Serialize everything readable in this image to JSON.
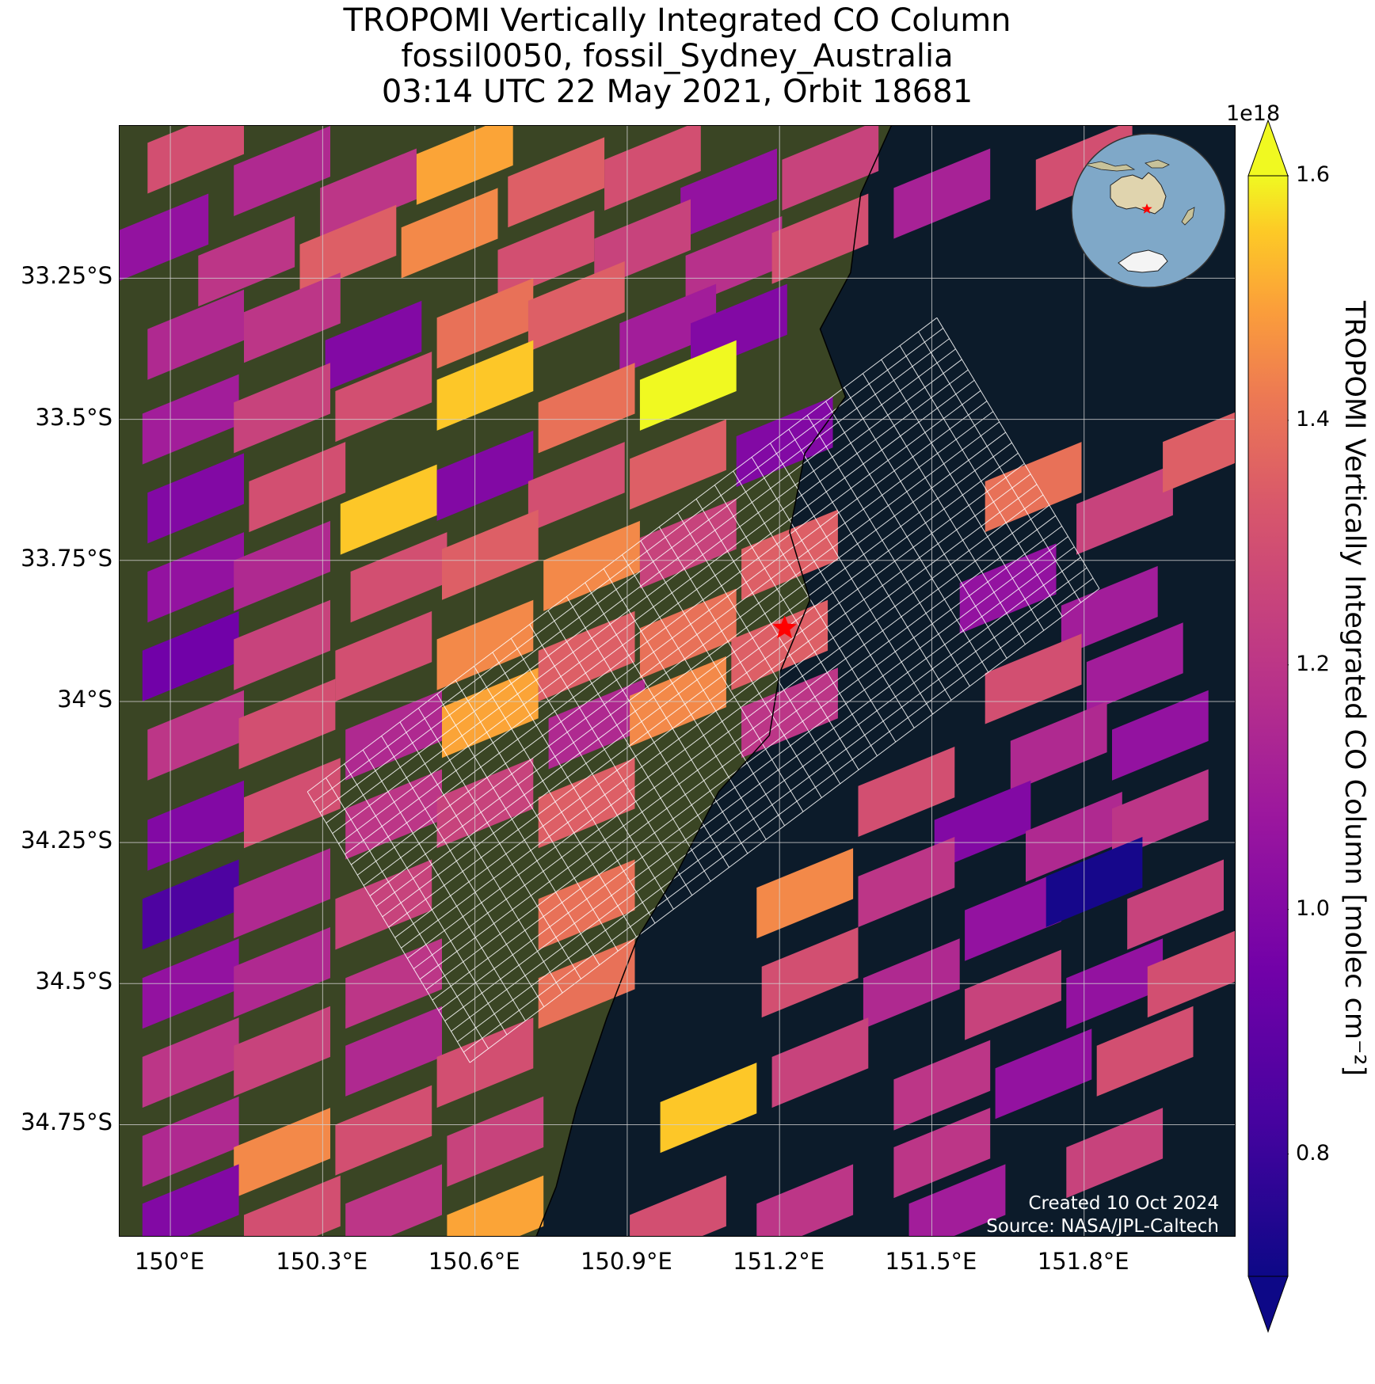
{
  "title": {
    "line1": "TROPOMI Vertically Integrated CO Column",
    "line2": "fossil0050, fossil_Sydney_Australia",
    "line3": "03:14 UTC 22 May 2021, Orbit 18681"
  },
  "map": {
    "extent": {
      "lon": [
        149.9,
        152.1
      ],
      "lat": [
        -34.95,
        -32.98
      ]
    },
    "lat_ticks": [
      {
        "value": -33.25,
        "label": "33.25°S"
      },
      {
        "value": -33.5,
        "label": "33.5°S"
      },
      {
        "value": -33.75,
        "label": "33.75°S"
      },
      {
        "value": -34.0,
        "label": "34°S"
      },
      {
        "value": -34.25,
        "label": "34.25°S"
      },
      {
        "value": -34.5,
        "label": "34.5°S"
      },
      {
        "value": -34.75,
        "label": "34.75°S"
      }
    ],
    "lon_ticks": [
      {
        "value": 150.0,
        "label": "150°E"
      },
      {
        "value": 150.3,
        "label": "150.3°E"
      },
      {
        "value": 150.6,
        "label": "150.6°E"
      },
      {
        "value": 150.9,
        "label": "150.9°E"
      },
      {
        "value": 151.2,
        "label": "151.2°E"
      },
      {
        "value": 151.5,
        "label": "151.5°E"
      },
      {
        "value": 151.8,
        "label": "151.8°E"
      }
    ],
    "target": {
      "name": "fossil_Sydney_Australia",
      "lon": 151.21,
      "lat": -33.87
    },
    "colors": {
      "ocean": "#0c1b2a",
      "land": "#3a4524",
      "target": "#ff0000",
      "grid": "#d0d0d0",
      "sam_grid": "#ffffff"
    }
  },
  "chart_data": {
    "type": "heatmap",
    "title": "TROPOMI Vertically Integrated CO Column",
    "colorbar_label": "TROPOMI Vertically Integrated CO Column [molec cm⁻²]",
    "colorbar_exponent": "1e18",
    "vmin": 0.7,
    "vmax": 1.6,
    "colorbar_ticks": [
      "0.8",
      "1.0",
      "1.2",
      "1.4",
      "1.6"
    ],
    "colormap": "plasma",
    "pixel_size_deg": {
      "lon": 0.19,
      "lat": 0.09
    },
    "pixels": [
      {
        "lon": 150.05,
        "lat": -33.02,
        "v": 1.3
      },
      {
        "lon": 150.22,
        "lat": -33.06,
        "v": 1.15
      },
      {
        "lon": 150.39,
        "lat": -33.1,
        "v": 1.2
      },
      {
        "lon": 150.58,
        "lat": -33.04,
        "v": 1.5
      },
      {
        "lon": 150.76,
        "lat": -33.08,
        "v": 1.35
      },
      {
        "lon": 150.95,
        "lat": -33.05,
        "v": 1.3
      },
      {
        "lon": 151.1,
        "lat": -33.1,
        "v": 1.05
      },
      {
        "lon": 151.3,
        "lat": -33.05,
        "v": 1.25
      },
      {
        "lon": 151.52,
        "lat": -33.1,
        "v": 1.12
      },
      {
        "lon": 151.8,
        "lat": -33.05,
        "v": 1.3
      },
      {
        "lon": 149.98,
        "lat": -33.18,
        "v": 1.05
      },
      {
        "lon": 150.15,
        "lat": -33.22,
        "v": 1.2
      },
      {
        "lon": 150.35,
        "lat": -33.2,
        "v": 1.35
      },
      {
        "lon": 150.55,
        "lat": -33.17,
        "v": 1.45
      },
      {
        "lon": 150.74,
        "lat": -33.21,
        "v": 1.3
      },
      {
        "lon": 150.93,
        "lat": -33.19,
        "v": 1.25
      },
      {
        "lon": 151.11,
        "lat": -33.22,
        "v": 1.18
      },
      {
        "lon": 151.28,
        "lat": -33.18,
        "v": 1.3
      },
      {
        "lon": 150.05,
        "lat": -33.35,
        "v": 1.15
      },
      {
        "lon": 150.24,
        "lat": -33.32,
        "v": 1.2
      },
      {
        "lon": 150.4,
        "lat": -33.37,
        "v": 1.0
      },
      {
        "lon": 150.62,
        "lat": -33.33,
        "v": 1.4
      },
      {
        "lon": 150.8,
        "lat": -33.3,
        "v": 1.35
      },
      {
        "lon": 150.98,
        "lat": -33.34,
        "v": 1.1
      },
      {
        "lon": 151.12,
        "lat": -33.34,
        "v": 1.0
      },
      {
        "lon": 150.04,
        "lat": -33.5,
        "v": 1.1
      },
      {
        "lon": 150.22,
        "lat": -33.48,
        "v": 1.25
      },
      {
        "lon": 150.42,
        "lat": -33.46,
        "v": 1.3
      },
      {
        "lon": 150.62,
        "lat": -33.44,
        "v": 1.55
      },
      {
        "lon": 150.82,
        "lat": -33.48,
        "v": 1.4
      },
      {
        "lon": 151.02,
        "lat": -33.44,
        "v": 1.6
      },
      {
        "lon": 150.05,
        "lat": -33.64,
        "v": 1.0
      },
      {
        "lon": 150.25,
        "lat": -33.62,
        "v": 1.3
      },
      {
        "lon": 150.43,
        "lat": -33.66,
        "v": 1.55
      },
      {
        "lon": 150.62,
        "lat": -33.6,
        "v": 1.0
      },
      {
        "lon": 150.8,
        "lat": -33.62,
        "v": 1.3
      },
      {
        "lon": 151.0,
        "lat": -33.58,
        "v": 1.35
      },
      {
        "lon": 151.21,
        "lat": -33.54,
        "v": 1.0
      },
      {
        "lon": 150.05,
        "lat": -33.78,
        "v": 1.05
      },
      {
        "lon": 150.22,
        "lat": -33.76,
        "v": 1.15
      },
      {
        "lon": 150.45,
        "lat": -33.78,
        "v": 1.3
      },
      {
        "lon": 150.63,
        "lat": -33.74,
        "v": 1.35
      },
      {
        "lon": 150.83,
        "lat": -33.76,
        "v": 1.45
      },
      {
        "lon": 151.02,
        "lat": -33.72,
        "v": 1.25
      },
      {
        "lon": 151.22,
        "lat": -33.74,
        "v": 1.35
      },
      {
        "lon": 151.65,
        "lat": -33.8,
        "v": 1.05
      },
      {
        "lon": 151.85,
        "lat": -33.84,
        "v": 1.1
      },
      {
        "lon": 151.7,
        "lat": -33.62,
        "v": 1.4
      },
      {
        "lon": 151.88,
        "lat": -33.66,
        "v": 1.25
      },
      {
        "lon": 152.05,
        "lat": -33.55,
        "v": 1.35
      },
      {
        "lon": 150.04,
        "lat": -33.92,
        "v": 0.95
      },
      {
        "lon": 150.22,
        "lat": -33.9,
        "v": 1.25
      },
      {
        "lon": 150.42,
        "lat": -33.92,
        "v": 1.3
      },
      {
        "lon": 150.62,
        "lat": -33.9,
        "v": 1.45
      },
      {
        "lon": 150.82,
        "lat": -33.92,
        "v": 1.35
      },
      {
        "lon": 151.02,
        "lat": -33.88,
        "v": 1.4
      },
      {
        "lon": 151.2,
        "lat": -33.9,
        "v": 1.35
      },
      {
        "lon": 151.7,
        "lat": -33.96,
        "v": 1.3
      },
      {
        "lon": 151.9,
        "lat": -33.94,
        "v": 1.1
      },
      {
        "lon": 150.05,
        "lat": -34.06,
        "v": 1.2
      },
      {
        "lon": 150.23,
        "lat": -34.04,
        "v": 1.3
      },
      {
        "lon": 150.44,
        "lat": -34.06,
        "v": 1.15
      },
      {
        "lon": 150.63,
        "lat": -34.02,
        "v": 1.5
      },
      {
        "lon": 150.84,
        "lat": -34.04,
        "v": 1.15
      },
      {
        "lon": 151.0,
        "lat": -34.0,
        "v": 1.45
      },
      {
        "lon": 151.22,
        "lat": -34.02,
        "v": 1.2
      },
      {
        "lon": 151.75,
        "lat": -34.08,
        "v": 1.15
      },
      {
        "lon": 151.95,
        "lat": -34.06,
        "v": 1.05
      },
      {
        "lon": 150.05,
        "lat": -34.22,
        "v": 1.0
      },
      {
        "lon": 150.24,
        "lat": -34.18,
        "v": 1.3
      },
      {
        "lon": 150.44,
        "lat": -34.2,
        "v": 1.2
      },
      {
        "lon": 150.62,
        "lat": -34.18,
        "v": 1.25
      },
      {
        "lon": 150.82,
        "lat": -34.18,
        "v": 1.35
      },
      {
        "lon": 151.45,
        "lat": -34.16,
        "v": 1.3
      },
      {
        "lon": 151.6,
        "lat": -34.22,
        "v": 1.0
      },
      {
        "lon": 151.78,
        "lat": -34.24,
        "v": 1.15
      },
      {
        "lon": 151.95,
        "lat": -34.2,
        "v": 1.2
      },
      {
        "lon": 150.04,
        "lat": -34.36,
        "v": 0.85
      },
      {
        "lon": 150.22,
        "lat": -34.34,
        "v": 1.15
      },
      {
        "lon": 150.42,
        "lat": -34.36,
        "v": 1.25
      },
      {
        "lon": 150.82,
        "lat": -34.36,
        "v": 1.4
      },
      {
        "lon": 151.25,
        "lat": -34.34,
        "v": 1.45
      },
      {
        "lon": 151.45,
        "lat": -34.32,
        "v": 1.2
      },
      {
        "lon": 151.66,
        "lat": -34.38,
        "v": 1.05
      },
      {
        "lon": 151.82,
        "lat": -34.32,
        "v": 0.72
      },
      {
        "lon": 151.98,
        "lat": -34.36,
        "v": 1.25
      },
      {
        "lon": 150.04,
        "lat": -34.5,
        "v": 1.05
      },
      {
        "lon": 150.22,
        "lat": -34.48,
        "v": 1.15
      },
      {
        "lon": 150.44,
        "lat": -34.5,
        "v": 1.2
      },
      {
        "lon": 150.82,
        "lat": -34.5,
        "v": 1.4
      },
      {
        "lon": 151.26,
        "lat": -34.48,
        "v": 1.3
      },
      {
        "lon": 151.46,
        "lat": -34.5,
        "v": 1.15
      },
      {
        "lon": 151.66,
        "lat": -34.52,
        "v": 1.25
      },
      {
        "lon": 151.86,
        "lat": -34.5,
        "v": 1.05
      },
      {
        "lon": 152.02,
        "lat": -34.48,
        "v": 1.3
      },
      {
        "lon": 150.04,
        "lat": -34.64,
        "v": 1.2
      },
      {
        "lon": 150.22,
        "lat": -34.62,
        "v": 1.25
      },
      {
        "lon": 150.44,
        "lat": -34.62,
        "v": 1.15
      },
      {
        "lon": 150.62,
        "lat": -34.64,
        "v": 1.3
      },
      {
        "lon": 151.28,
        "lat": -34.64,
        "v": 1.25
      },
      {
        "lon": 151.52,
        "lat": -34.68,
        "v": 1.2
      },
      {
        "lon": 151.72,
        "lat": -34.66,
        "v": 1.05
      },
      {
        "lon": 151.92,
        "lat": -34.62,
        "v": 1.3
      },
      {
        "lon": 150.04,
        "lat": -34.78,
        "v": 1.15
      },
      {
        "lon": 150.22,
        "lat": -34.8,
        "v": 1.45
      },
      {
        "lon": 150.42,
        "lat": -34.76,
        "v": 1.3
      },
      {
        "lon": 150.64,
        "lat": -34.78,
        "v": 1.25
      },
      {
        "lon": 151.06,
        "lat": -34.72,
        "v": 1.55
      },
      {
        "lon": 151.52,
        "lat": -34.8,
        "v": 1.2
      },
      {
        "lon": 151.86,
        "lat": -34.8,
        "v": 1.25
      },
      {
        "lon": 150.04,
        "lat": -34.9,
        "v": 1.0
      },
      {
        "lon": 150.24,
        "lat": -34.92,
        "v": 1.3
      },
      {
        "lon": 150.44,
        "lat": -34.9,
        "v": 1.2
      },
      {
        "lon": 150.64,
        "lat": -34.92,
        "v": 1.5
      },
      {
        "lon": 151.0,
        "lat": -34.92,
        "v": 1.3
      },
      {
        "lon": 151.25,
        "lat": -34.9,
        "v": 1.2
      },
      {
        "lon": 151.55,
        "lat": -34.9,
        "v": 1.1
      }
    ]
  },
  "inset_globe": {
    "center_lon": 140,
    "center_lat": -40
  },
  "credit": {
    "line1": "Created 10 Oct 2024",
    "line2": "Source: NASA/JPL-Caltech"
  }
}
